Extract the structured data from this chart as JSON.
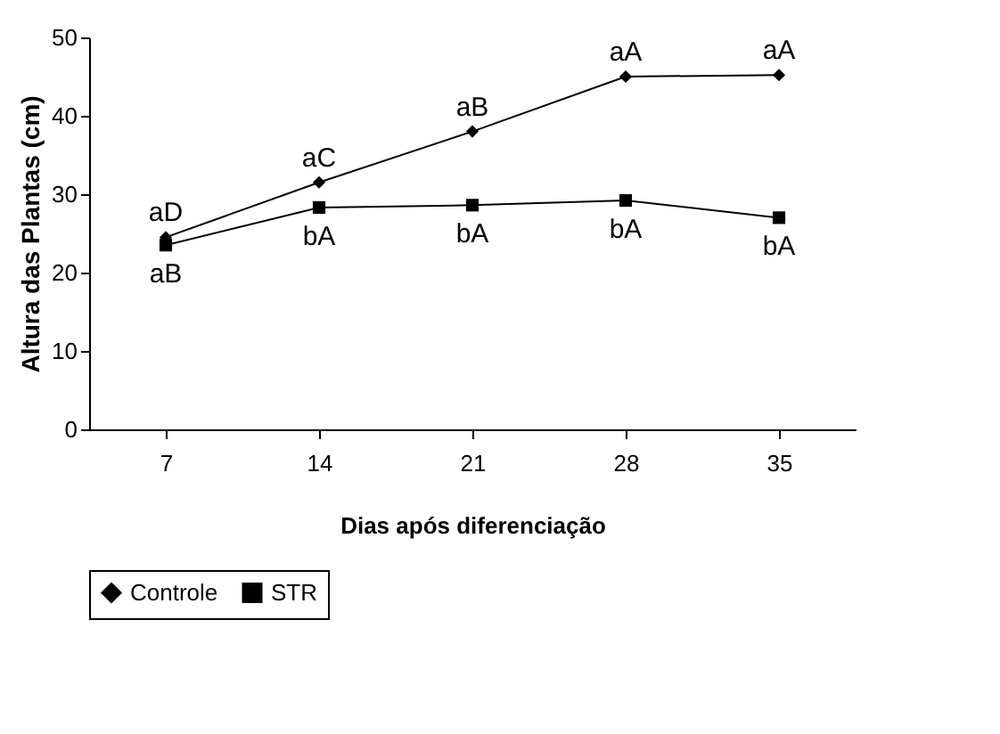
{
  "chart_data": {
    "type": "line",
    "xlabel": "Dias após diferenciação",
    "ylabel": "Altura das Plantas (cm)",
    "categories": [
      "7",
      "14",
      "21",
      "28",
      "35"
    ],
    "series": [
      {
        "name": "Controle",
        "color": "#000000",
        "marker": "diamond",
        "values": [
          24.5,
          31.5,
          38,
          45,
          45.2
        ]
      },
      {
        "name": "STR",
        "color": "#000000",
        "marker": "square",
        "values": [
          23.5,
          28.3,
          28.6,
          29.2,
          27
        ]
      }
    ],
    "ylim": [
      0,
      50
    ],
    "yticks": [
      0,
      10,
      20,
      30,
      40,
      50
    ],
    "grid": false,
    "legend": "bottom",
    "line_style": "solid",
    "annotations": [
      {
        "text": "aD",
        "x": "7",
        "y": 24.5
      },
      {
        "text": "aC",
        "x": "14",
        "y": 31.5
      },
      {
        "text": "aB",
        "x": "21",
        "y": 38
      },
      {
        "text": "aA",
        "x": "28",
        "y": 45
      },
      {
        "text": "aA",
        "x": "35",
        "y": 45.2
      },
      {
        "text": "aB",
        "x": "7",
        "y": 23.5
      },
      {
        "text": "bA",
        "x": "14",
        "y": 28.3
      },
      {
        "text": "bA",
        "x": "21",
        "y": 28.6
      },
      {
        "text": "bA",
        "x": "28",
        "y": 29.2
      },
      {
        "text": "bA",
        "x": "35",
        "y": 27
      }
    ]
  }
}
